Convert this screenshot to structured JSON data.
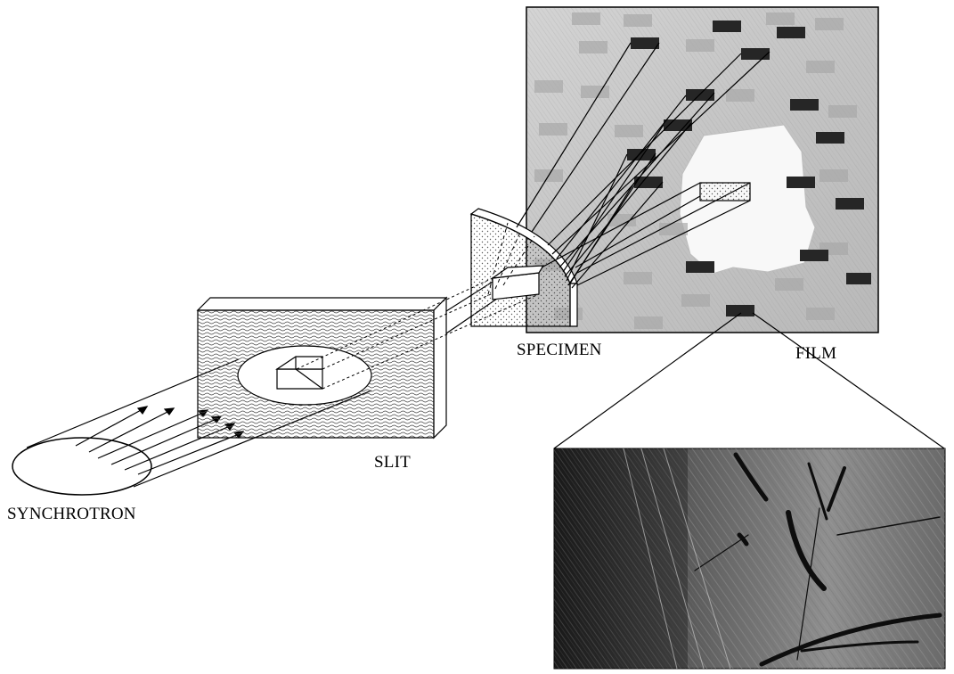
{
  "labels": {
    "synchrotron": "SYNCHROTRON",
    "slit": "SLIT",
    "specimen": "SPECIMEN",
    "film": "FILM"
  },
  "colors": {
    "ink": "#000000",
    "film_background": "#c9c9c9",
    "film_void": "#f8f8f8",
    "topograph_spot": "#2a2a2a",
    "specimen_stipple": "#555555",
    "slit_texture": "#444444"
  }
}
